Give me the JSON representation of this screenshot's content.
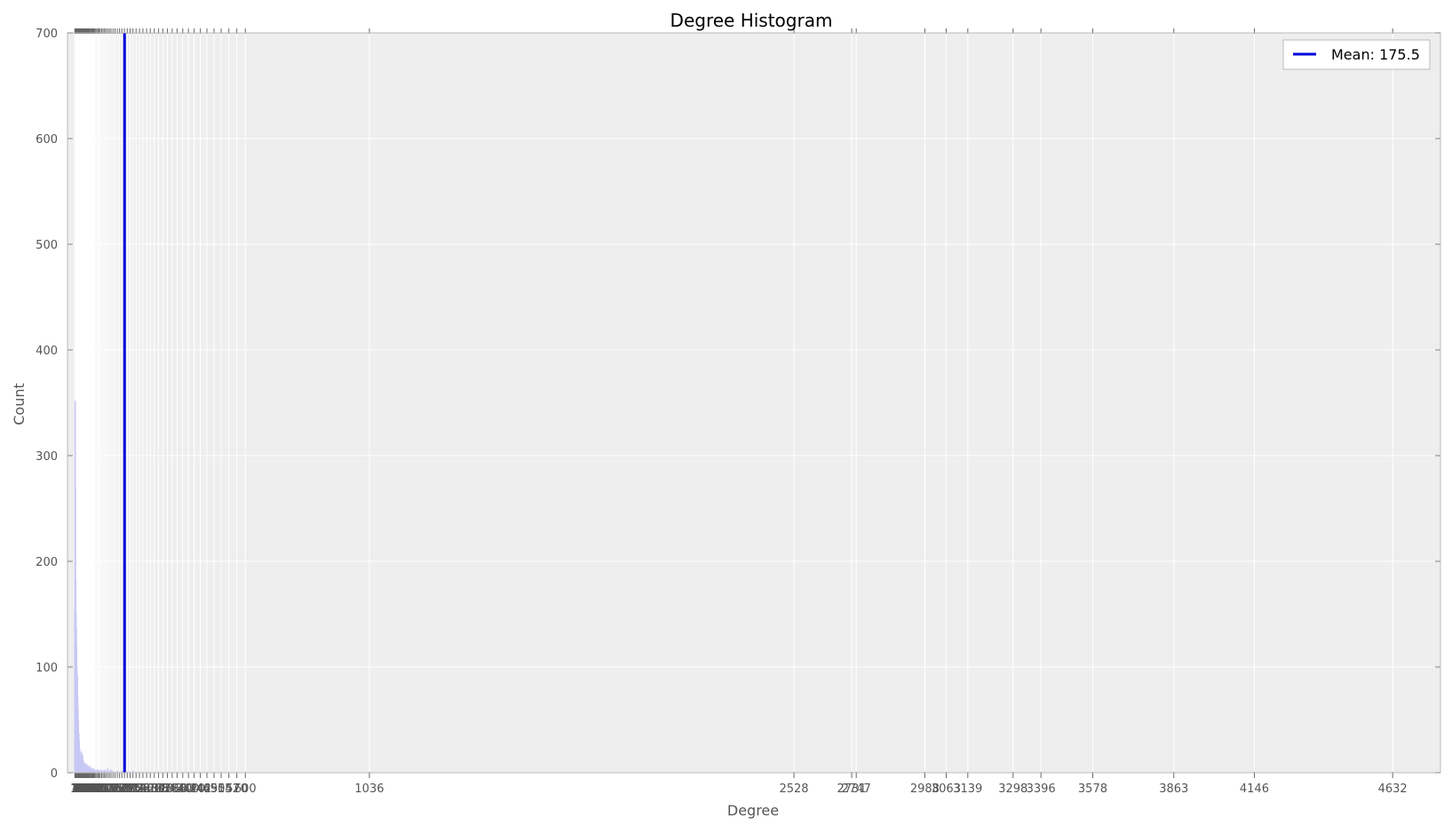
{
  "chart_data": {
    "type": "bar",
    "title": "Degree Histogram",
    "xlabel": "Degree",
    "ylabel": "Count",
    "ylim": [
      0,
      700
    ],
    "xlim": [
      -25,
      4800
    ],
    "yticks": [
      0,
      100,
      200,
      300,
      400,
      500,
      600,
      700
    ],
    "grid": true,
    "legend_position": "top-right",
    "colors": {
      "background": "#eeeeee",
      "bar": "#c8c8f5",
      "mean_line": "#0000dd",
      "grid": "#ffffff",
      "axis": "#bbbbbb",
      "tick_text": "#555555"
    },
    "mean": {
      "value": 175.5,
      "label": "Mean: 175.5"
    },
    "bars": {
      "degrees": [
        1,
        2,
        3,
        4,
        5,
        6,
        7,
        8,
        9,
        10,
        11,
        12,
        13,
        14,
        15,
        16,
        17,
        18,
        19,
        20,
        22,
        24,
        26,
        28,
        30,
        32,
        34,
        36,
        38,
        40,
        42,
        44,
        46,
        48,
        50,
        52,
        55,
        58,
        61,
        64,
        67,
        70,
        74,
        78,
        82,
        86,
        90,
        95,
        100,
        105,
        110,
        116,
        122,
        128,
        135,
        142,
        150,
        158,
        166,
        175,
        185,
        195,
        205,
        216,
        228,
        240,
        253,
        266,
        280,
        295,
        310,
        326,
        343,
        360,
        380,
        400,
        420,
        442,
        465,
        490,
        515,
        542,
        570,
        600
      ],
      "counts": [
        152,
        352,
        270,
        183,
        150,
        137,
        120,
        100,
        93,
        92,
        72,
        60,
        50,
        38,
        37,
        30,
        24,
        22,
        18,
        16,
        14,
        20,
        14,
        17,
        12,
        10,
        8,
        6,
        9,
        7,
        5,
        8,
        6,
        4,
        5,
        7,
        3,
        5,
        4,
        3,
        4,
        3,
        2,
        3,
        3,
        2,
        2,
        3,
        2,
        3,
        2,
        4,
        2,
        3,
        2,
        1,
        2,
        1,
        2,
        2,
        1,
        1,
        2,
        1,
        1,
        1,
        1,
        1,
        1,
        1,
        1,
        1,
        1,
        1,
        1,
        1,
        1,
        1,
        1,
        1,
        1,
        1,
        1,
        1
      ]
    },
    "xticks_labeled": [
      1036,
      2528,
      2731,
      2747,
      2988,
      3063,
      3139,
      3298,
      3396,
      3578,
      3863,
      4146,
      4632
    ]
  }
}
